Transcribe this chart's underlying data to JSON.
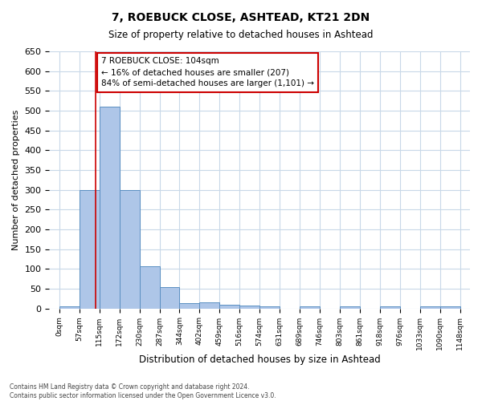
{
  "title": "7, ROEBUCK CLOSE, ASHTEAD, KT21 2DN",
  "subtitle": "Size of property relative to detached houses in Ashtead",
  "xlabel": "Distribution of detached houses by size in Ashtead",
  "ylabel": "Number of detached properties",
  "bar_values": [
    5,
    300,
    510,
    300,
    107,
    53,
    14,
    15,
    10,
    7,
    5,
    0,
    5,
    0,
    5,
    0,
    5,
    0,
    5,
    5
  ],
  "bin_labels": [
    "0sqm",
    "57sqm",
    "115sqm",
    "172sqm",
    "230sqm",
    "287sqm",
    "344sqm",
    "402sqm",
    "459sqm",
    "516sqm",
    "574sqm",
    "631sqm",
    "689sqm",
    "746sqm",
    "803sqm",
    "861sqm",
    "918sqm",
    "976sqm",
    "1033sqm",
    "1090sqm",
    "1148sqm"
  ],
  "bar_color": "#aec6e8",
  "bar_edge_color": "#5a8fc2",
  "annotation_text": "7 ROEBUCK CLOSE: 104sqm\n← 16% of detached houses are smaller (207)\n84% of semi-detached houses are larger (1,101) →",
  "annotation_box_color": "#ffffff",
  "annotation_border_color": "#cc0000",
  "vline_x": 104,
  "vline_color": "#cc0000",
  "ylim": [
    0,
    650
  ],
  "yticks": [
    0,
    50,
    100,
    150,
    200,
    250,
    300,
    350,
    400,
    450,
    500,
    550,
    600,
    650
  ],
  "grid_color": "#c8d8e8",
  "footer": "Contains HM Land Registry data © Crown copyright and database right 2024.\nContains public sector information licensed under the Open Government Licence v3.0.",
  "bin_width": 57,
  "num_bins": 20
}
